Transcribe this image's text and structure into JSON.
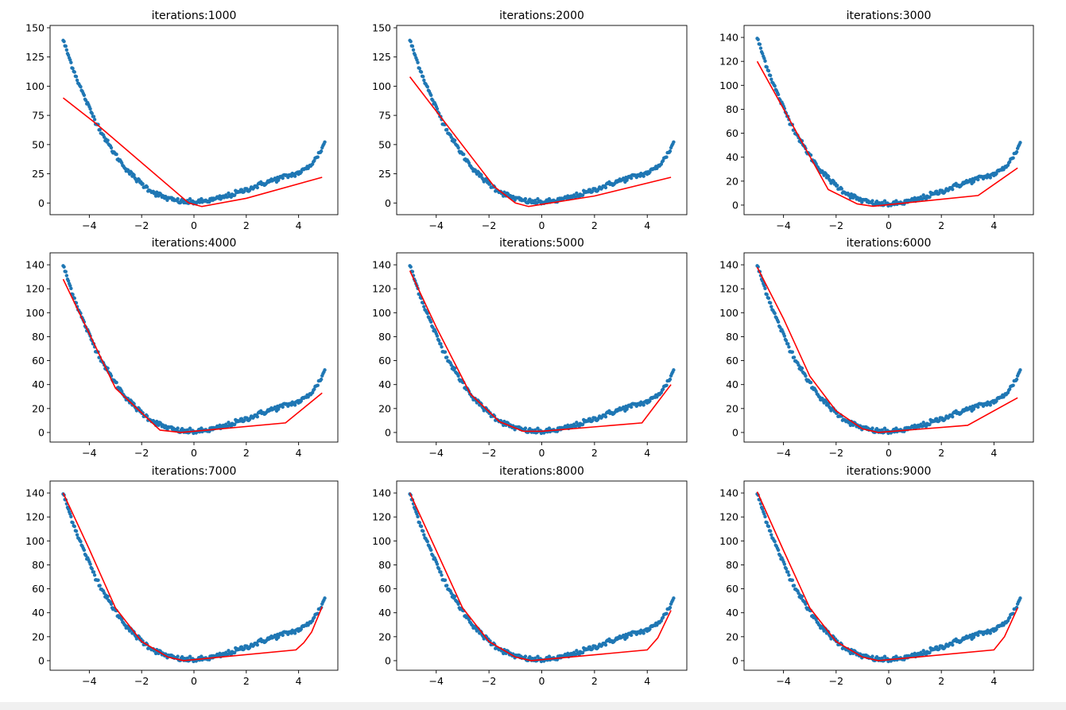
{
  "colors": {
    "scatter": "#1f77b4",
    "fit_line": "#ff0000",
    "axes": "#000000",
    "background": "#ffffff",
    "footer": "#f0f0f0"
  },
  "chart_data": [
    {
      "type": "scatter",
      "title": "iterations:1000",
      "xlabel": "",
      "ylabel": "",
      "xlim": [
        -5.5,
        5.5
      ],
      "ylim": [
        -10,
        152
      ],
      "xticks": [
        -4,
        -2,
        0,
        2,
        4
      ],
      "yticks": [
        0,
        25,
        50,
        75,
        100,
        125,
        150
      ],
      "grid": false,
      "series": [
        {
          "kind": "scatter",
          "x_range": [
            -5,
            5
          ],
          "points": 300,
          "curve": "y = -0.48*x^3 + 3.28*x^2 + 0.66*x + 0.8 (+ steep rise above x=3.7)"
        },
        {
          "kind": "line",
          "x": [
            -5,
            -3.8,
            -0.2,
            0.3,
            2,
            4.9
          ],
          "y": [
            90,
            69,
            0,
            -3,
            4,
            22
          ]
        }
      ]
    },
    {
      "type": "scatter",
      "title": "iterations:2000",
      "xlabel": "",
      "ylabel": "",
      "xlim": [
        -5.5,
        5.5
      ],
      "ylim": [
        -10,
        152
      ],
      "xticks": [
        -4,
        -2,
        0,
        2,
        4
      ],
      "yticks": [
        0,
        25,
        50,
        75,
        100,
        125,
        150
      ],
      "grid": false,
      "series": [
        {
          "kind": "scatter",
          "x_range": [
            -5,
            5
          ],
          "points": 300,
          "curve": "y = -0.48*x^3 + 3.28*x^2 + 0.66*x + 0.8 (+ steep rise above x=3.7)"
        },
        {
          "kind": "line",
          "x": [
            -5,
            -1.8,
            -1,
            -0.5,
            2,
            4.9
          ],
          "y": [
            108,
            14,
            0,
            -3,
            6,
            22
          ]
        }
      ]
    },
    {
      "type": "scatter",
      "title": "iterations:3000",
      "xlabel": "",
      "ylabel": "",
      "xlim": [
        -5.5,
        5.5
      ],
      "ylim": [
        -8,
        150
      ],
      "xticks": [
        -4,
        -2,
        0,
        2,
        4
      ],
      "yticks": [
        0,
        20,
        40,
        60,
        80,
        100,
        120,
        140
      ],
      "grid": false,
      "series": [
        {
          "kind": "scatter",
          "x_range": [
            -5,
            5
          ],
          "points": 300,
          "curve": "y = -0.48*x^3 + 3.28*x^2 + 0.66*x + 0.8 (+ steep rise above x=3.7)"
        },
        {
          "kind": "line",
          "x": [
            -5,
            -2.3,
            -1.2,
            -0.6,
            3.4,
            4.9
          ],
          "y": [
            120,
            13,
            1,
            -1,
            8,
            31
          ]
        }
      ]
    },
    {
      "type": "scatter",
      "title": "iterations:4000",
      "xlabel": "",
      "ylabel": "",
      "xlim": [
        -5.5,
        5.5
      ],
      "ylim": [
        -8,
        150
      ],
      "xticks": [
        -4,
        -2,
        0,
        2,
        4
      ],
      "yticks": [
        0,
        20,
        40,
        60,
        80,
        100,
        120,
        140
      ],
      "grid": false,
      "series": [
        {
          "kind": "scatter",
          "x_range": [
            -5,
            5
          ],
          "points": 300,
          "curve": "y = -0.48*x^3 + 3.28*x^2 + 0.66*x + 0.8 (+ steep rise above x=3.7)"
        },
        {
          "kind": "line",
          "x": [
            -5,
            -3,
            -1.3,
            -0.5,
            3.5,
            4.9
          ],
          "y": [
            128,
            37,
            2,
            0,
            8,
            33
          ]
        }
      ]
    },
    {
      "type": "scatter",
      "title": "iterations:5000",
      "xlabel": "",
      "ylabel": "",
      "xlim": [
        -5.5,
        5.5
      ],
      "ylim": [
        -8,
        150
      ],
      "xticks": [
        -4,
        -2,
        0,
        2,
        4
      ],
      "yticks": [
        0,
        20,
        40,
        60,
        80,
        100,
        120,
        140
      ],
      "grid": false,
      "series": [
        {
          "kind": "scatter",
          "x_range": [
            -5,
            5
          ],
          "points": 300,
          "curve": "y = -0.48*x^3 + 3.28*x^2 + 0.66*x + 0.8 (+ steep rise above x=3.7)"
        },
        {
          "kind": "line",
          "x": [
            -5,
            -4,
            -2.7,
            -1.6,
            -0.7,
            0,
            3.8,
            4.9
          ],
          "y": [
            135,
            88,
            32,
            9,
            1,
            1,
            8,
            40
          ]
        }
      ]
    },
    {
      "type": "scatter",
      "title": "iterations:6000",
      "xlabel": "",
      "ylabel": "",
      "xlim": [
        -5.5,
        5.5
      ],
      "ylim": [
        -8,
        150
      ],
      "xticks": [
        -4,
        -2,
        0,
        2,
        4
      ],
      "yticks": [
        0,
        20,
        40,
        60,
        80,
        100,
        120,
        140
      ],
      "grid": false,
      "series": [
        {
          "kind": "scatter",
          "x_range": [
            -5,
            5
          ],
          "points": 300,
          "curve": "y = -0.48*x^3 + 3.28*x^2 + 0.66*x + 0.8 (+ steep rise above x=3.7)"
        },
        {
          "kind": "line",
          "x": [
            -5,
            -4,
            -3,
            -2,
            -1,
            -0.4,
            3,
            4.9
          ],
          "y": [
            138,
            95,
            47,
            18,
            3,
            0,
            6,
            29
          ]
        }
      ]
    },
    {
      "type": "scatter",
      "title": "iterations:7000",
      "xlabel": "",
      "ylabel": "",
      "xlim": [
        -5.5,
        5.5
      ],
      "ylim": [
        -8,
        150
      ],
      "xticks": [
        -4,
        -2,
        0,
        2,
        4
      ],
      "yticks": [
        0,
        20,
        40,
        60,
        80,
        100,
        120,
        140
      ],
      "grid": false,
      "series": [
        {
          "kind": "scatter",
          "x_range": [
            -5,
            5
          ],
          "points": 300,
          "curve": "y = -0.48*x^3 + 3.28*x^2 + 0.66*x + 0.8 (+ steep rise above x=3.7)"
        },
        {
          "kind": "line",
          "x": [
            -5,
            -4,
            -3,
            -2,
            -1,
            -0.4,
            3.9,
            4.2,
            4.5,
            4.9
          ],
          "y": [
            140,
            93,
            44,
            16,
            3,
            0,
            9,
            15,
            24,
            45
          ]
        }
      ]
    },
    {
      "type": "scatter",
      "title": "iterations:8000",
      "xlabel": "",
      "ylabel": "",
      "xlim": [
        -5.5,
        5.5
      ],
      "ylim": [
        -8,
        150
      ],
      "xticks": [
        -4,
        -2,
        0,
        2,
        4
      ],
      "yticks": [
        0,
        20,
        40,
        60,
        80,
        100,
        120,
        140
      ],
      "grid": false,
      "series": [
        {
          "kind": "scatter",
          "x_range": [
            -5,
            5
          ],
          "points": 300,
          "curve": "y = -0.48*x^3 + 3.28*x^2 + 0.66*x + 0.8 (+ steep rise above x=3.7)"
        },
        {
          "kind": "line",
          "x": [
            -5,
            -4,
            -3,
            -2,
            -1,
            -0.4,
            4,
            4.4,
            4.9
          ],
          "y": [
            140,
            92,
            44,
            16,
            3,
            0,
            9,
            19,
            42
          ]
        }
      ]
    },
    {
      "type": "scatter",
      "title": "iterations:9000",
      "xlabel": "",
      "ylabel": "",
      "xlim": [
        -5.5,
        5.5
      ],
      "ylim": [
        -8,
        150
      ],
      "xticks": [
        -4,
        -2,
        0,
        2,
        4
      ],
      "yticks": [
        0,
        20,
        40,
        60,
        80,
        100,
        120,
        140
      ],
      "grid": false,
      "series": [
        {
          "kind": "scatter",
          "x_range": [
            -5,
            5
          ],
          "points": 300,
          "curve": "y = -0.48*x^3 + 3.28*x^2 + 0.66*x + 0.8 (+ steep rise above x=3.7)"
        },
        {
          "kind": "line",
          "x": [
            -5,
            -4,
            -3,
            -2,
            -1,
            -0.4,
            4,
            4.4,
            4.9
          ],
          "y": [
            141,
            92,
            44,
            16,
            3,
            0,
            9,
            20,
            44
          ]
        }
      ]
    }
  ]
}
